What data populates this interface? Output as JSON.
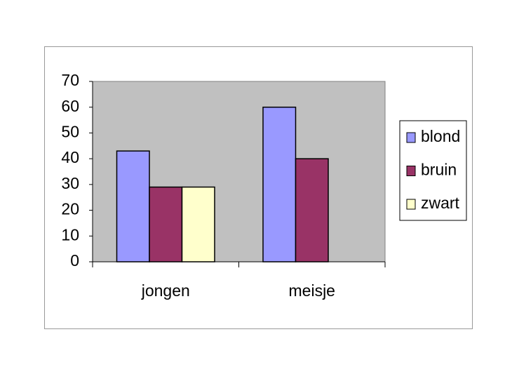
{
  "chart_data": {
    "type": "bar",
    "categories": [
      "jongen",
      "meisje"
    ],
    "series": [
      {
        "name": "blond",
        "color": "#9999ff",
        "values": [
          43,
          60
        ]
      },
      {
        "name": "bruin",
        "color": "#993366",
        "values": [
          29,
          40
        ]
      },
      {
        "name": "zwart",
        "color": "#ffffcc",
        "values": [
          29,
          0
        ]
      }
    ],
    "ylim": [
      0,
      70
    ],
    "yticks": [
      0,
      10,
      20,
      30,
      40,
      50,
      60,
      70
    ],
    "grid": false,
    "legend": "right",
    "plot_background": "#c0c0c0"
  }
}
